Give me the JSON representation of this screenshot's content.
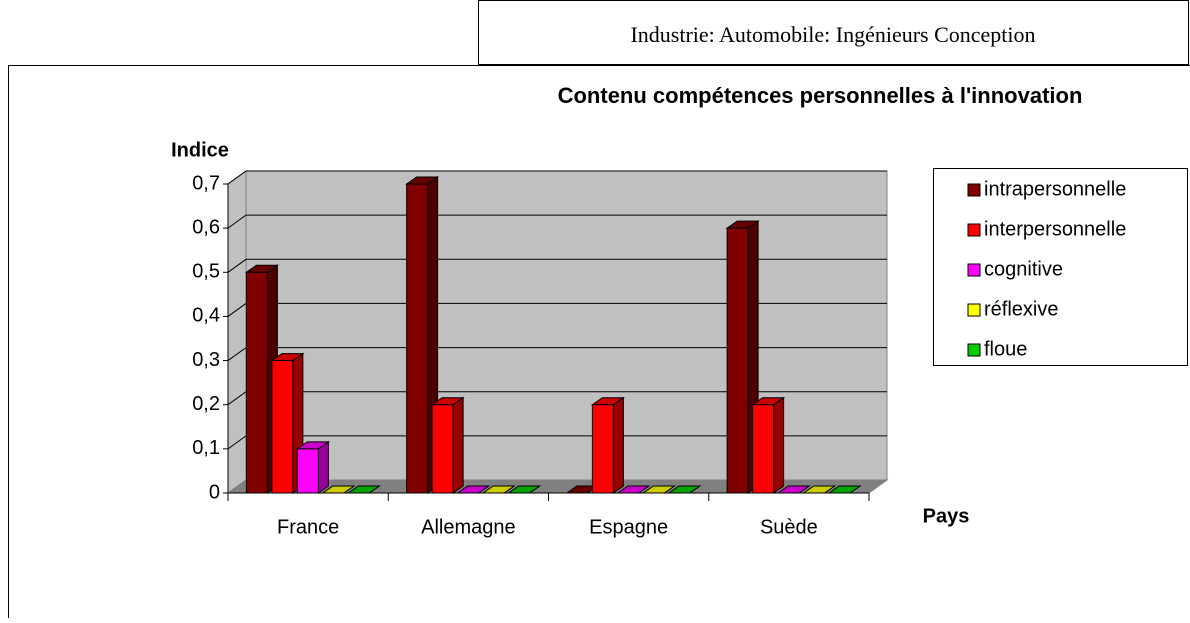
{
  "header": {
    "title": "Industrie: Automobile: Ingénieurs Conception"
  },
  "chart_data": {
    "type": "bar3d",
    "title": "Contenu compétences personnelles à l'innovation",
    "y_label": "Indice",
    "x_label": "Pays",
    "categories": [
      "France",
      "Allemagne",
      "Espagne",
      "Suède"
    ],
    "series": [
      {
        "name": "intrapersonnelle",
        "color": "#800000",
        "values": [
          0.5,
          0.7,
          0,
          0.6
        ]
      },
      {
        "name": "interpersonnelle",
        "color": "#ff0000",
        "values": [
          0.3,
          0.2,
          0.2,
          0.2
        ]
      },
      {
        "name": "cognitive",
        "color": "#ff00ff",
        "values": [
          0.1,
          0,
          0,
          0
        ]
      },
      {
        "name": "réflexive",
        "color": "#ffff00",
        "values": [
          0,
          0,
          0,
          0
        ]
      },
      {
        "name": "floue",
        "color": "#00cc00",
        "values": [
          0,
          0,
          0,
          0
        ]
      }
    ],
    "ylim": [
      0,
      0.7
    ],
    "yticks": [
      0,
      {
        "value": 0.1,
        "label": "0,1"
      },
      {
        "value": 0.2,
        "label": "0,2"
      },
      {
        "value": 0.3,
        "label": "0,3"
      },
      {
        "value": 0.4,
        "label": "0,4"
      },
      {
        "value": 0.5,
        "label": "0,5"
      },
      {
        "value": 0.6,
        "label": "0,6"
      },
      {
        "value": 0.7,
        "label": "0,7"
      }
    ],
    "grid": true,
    "legend": "right"
  }
}
